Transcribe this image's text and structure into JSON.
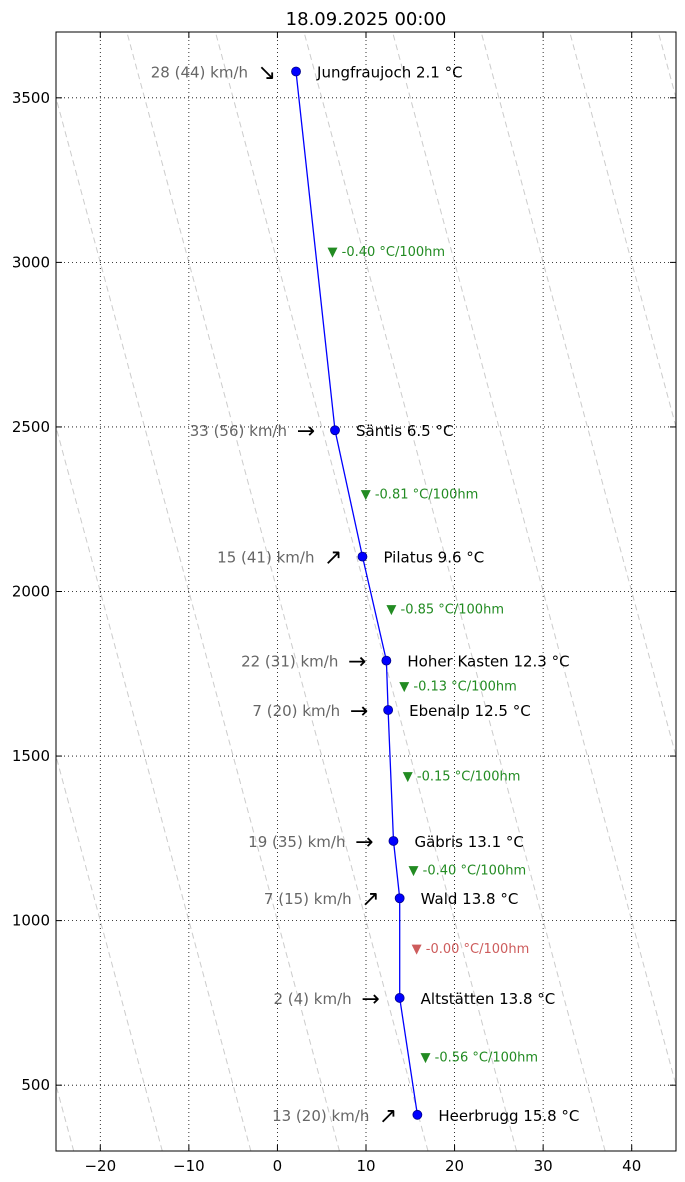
{
  "chart_data": {
    "type": "line",
    "title": "18.09.2025 00:00",
    "xlabel": "",
    "ylabel": "",
    "xlim": [
      -25,
      45
    ],
    "ylim": [
      300,
      3700
    ],
    "x_ticks": [
      -20,
      -10,
      0,
      10,
      20,
      30,
      40
    ],
    "y_ticks": [
      500,
      1000,
      1500,
      2000,
      2500,
      3000,
      3500
    ],
    "grid": "dotted",
    "line_color": "#0000ff",
    "dry_adiabat_color": "#cccccc",
    "stations": [
      {
        "name": "Jungfraujoch",
        "label": "Jungfraujoch 2.1 °C",
        "temp": 2.1,
        "alt": 3580,
        "wind": "28 (44) km/h",
        "wind_dir": "SE"
      },
      {
        "name": "Säntis",
        "label": "Säntis 6.5 °C",
        "temp": 6.5,
        "alt": 2490,
        "wind": "33 (56) km/h",
        "wind_dir": "E"
      },
      {
        "name": "Pilatus",
        "label": "Pilatus 9.6 °C",
        "temp": 9.6,
        "alt": 2106,
        "wind": "15 (41) km/h",
        "wind_dir": "NE"
      },
      {
        "name": "Hoher Kasten",
        "label": "Hoher Kasten 12.3 °C",
        "temp": 12.3,
        "alt": 1790,
        "wind": "22 (31) km/h",
        "wind_dir": "E"
      },
      {
        "name": "Ebenalp",
        "label": "Ebenalp 12.5 °C",
        "temp": 12.5,
        "alt": 1640,
        "wind": "7 (20) km/h",
        "wind_dir": "E"
      },
      {
        "name": "Gäbris",
        "label": "Gäbris 13.1 °C",
        "temp": 13.1,
        "alt": 1242,
        "wind": "19 (35) km/h",
        "wind_dir": "E"
      },
      {
        "name": "Wald",
        "label": "Wald 13.8 °C",
        "temp": 13.8,
        "alt": 1068,
        "wind": "7 (15) km/h",
        "wind_dir": "NE"
      },
      {
        "name": "Altstätten",
        "label": "Altstätten 13.8 °C",
        "temp": 13.8,
        "alt": 765,
        "wind": "2 (4) km/h",
        "wind_dir": "E"
      },
      {
        "name": "Heerbrugg",
        "label": "Heerbrugg 15.8 °C",
        "temp": 15.8,
        "alt": 410,
        "wind": "13 (20) km/h",
        "wind_dir": "NE"
      }
    ],
    "lapse_rates": [
      {
        "label": "▼ -0.40 °C/100hm",
        "color": "#228b22"
      },
      {
        "label": "▼ -0.81 °C/100hm",
        "color": "#228b22"
      },
      {
        "label": "▼ -0.85 °C/100hm",
        "color": "#228b22"
      },
      {
        "label": "▼ -0.13 °C/100hm",
        "color": "#228b22"
      },
      {
        "label": "▼ -0.15 °C/100hm",
        "color": "#228b22"
      },
      {
        "label": "▼ -0.40 °C/100hm",
        "color": "#228b22"
      },
      {
        "label": "▼ -0.00 °C/100hm",
        "color": "#cd5c5c"
      },
      {
        "label": "▼ -0.56 °C/100hm",
        "color": "#228b22"
      }
    ]
  }
}
